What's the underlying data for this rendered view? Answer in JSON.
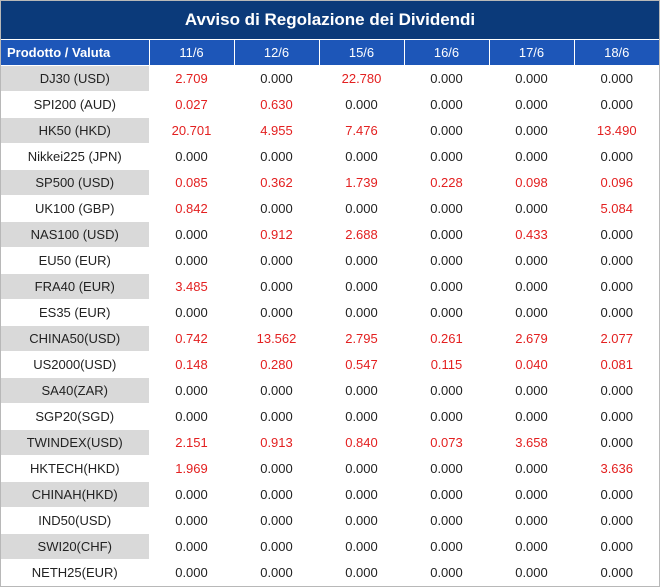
{
  "title": "Avviso di Regolazione dei Dividendi",
  "columns": [
    "Prodotto / Valuta",
    "11/6",
    "12/6",
    "15/6",
    "16/6",
    "17/6",
    "18/6"
  ],
  "rows": [
    {
      "name": "DJ30 (USD)",
      "values": [
        "2.709",
        "0.000",
        "22.780",
        "0.000",
        "0.000",
        "0.000"
      ]
    },
    {
      "name": "SPI200 (AUD)",
      "values": [
        "0.027",
        "0.630",
        "0.000",
        "0.000",
        "0.000",
        "0.000"
      ]
    },
    {
      "name": "HK50 (HKD)",
      "values": [
        "20.701",
        "4.955",
        "7.476",
        "0.000",
        "0.000",
        "13.490"
      ]
    },
    {
      "name": "Nikkei225 (JPN)",
      "values": [
        "0.000",
        "0.000",
        "0.000",
        "0.000",
        "0.000",
        "0.000"
      ]
    },
    {
      "name": "SP500 (USD)",
      "values": [
        "0.085",
        "0.362",
        "1.739",
        "0.228",
        "0.098",
        "0.096"
      ]
    },
    {
      "name": "UK100 (GBP)",
      "values": [
        "0.842",
        "0.000",
        "0.000",
        "0.000",
        "0.000",
        "5.084"
      ]
    },
    {
      "name": "NAS100 (USD)",
      "values": [
        "0.000",
        "0.912",
        "2.688",
        "0.000",
        "0.433",
        "0.000"
      ]
    },
    {
      "name": "EU50 (EUR)",
      "values": [
        "0.000",
        "0.000",
        "0.000",
        "0.000",
        "0.000",
        "0.000"
      ]
    },
    {
      "name": "FRA40 (EUR)",
      "values": [
        "3.485",
        "0.000",
        "0.000",
        "0.000",
        "0.000",
        "0.000"
      ]
    },
    {
      "name": "ES35 (EUR)",
      "values": [
        "0.000",
        "0.000",
        "0.000",
        "0.000",
        "0.000",
        "0.000"
      ]
    },
    {
      "name": "CHINA50(USD)",
      "values": [
        "0.742",
        "13.562",
        "2.795",
        "0.261",
        "2.679",
        "2.077"
      ]
    },
    {
      "name": "US2000(USD)",
      "values": [
        "0.148",
        "0.280",
        "0.547",
        "0.115",
        "0.040",
        "0.081"
      ]
    },
    {
      "name": "SA40(ZAR)",
      "values": [
        "0.000",
        "0.000",
        "0.000",
        "0.000",
        "0.000",
        "0.000"
      ]
    },
    {
      "name": "SGP20(SGD)",
      "values": [
        "0.000",
        "0.000",
        "0.000",
        "0.000",
        "0.000",
        "0.000"
      ]
    },
    {
      "name": "TWINDEX(USD)",
      "values": [
        "2.151",
        "0.913",
        "0.840",
        "0.073",
        "3.658",
        "0.000"
      ]
    },
    {
      "name": "HKTECH(HKD)",
      "values": [
        "1.969",
        "0.000",
        "0.000",
        "0.000",
        "0.000",
        "3.636"
      ]
    },
    {
      "name": "CHINAH(HKD)",
      "values": [
        "0.000",
        "0.000",
        "0.000",
        "0.000",
        "0.000",
        "0.000"
      ]
    },
    {
      "name": "IND50(USD)",
      "values": [
        "0.000",
        "0.000",
        "0.000",
        "0.000",
        "0.000",
        "0.000"
      ]
    },
    {
      "name": "SWI20(CHF)",
      "values": [
        "0.000",
        "0.000",
        "0.000",
        "0.000",
        "0.000",
        "0.000"
      ]
    },
    {
      "name": "NETH25(EUR)",
      "values": [
        "0.000",
        "0.000",
        "0.000",
        "0.000",
        "0.000",
        "0.000"
      ]
    }
  ],
  "colors": {
    "title_bg": "#0b3a7a",
    "header_bg": "#1d56b8",
    "row_shade": "#d9d9d9",
    "nonzero_text": "#e32020",
    "zero_text": "#222222"
  }
}
